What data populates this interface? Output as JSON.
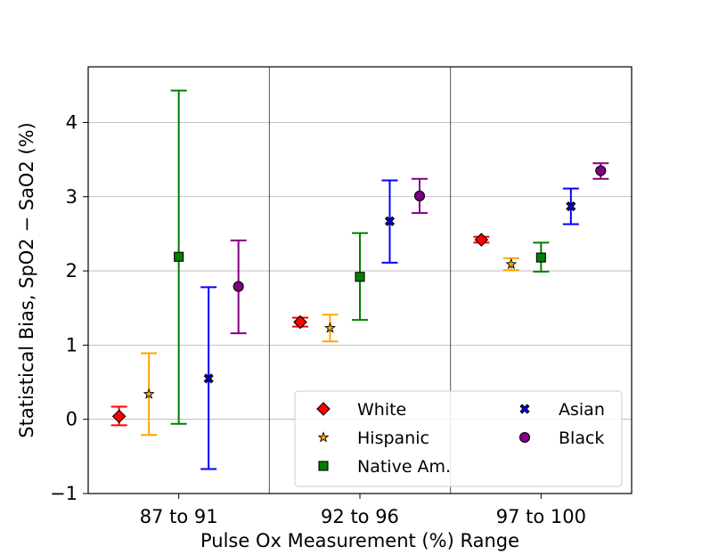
{
  "chart_data": {
    "type": "scatter",
    "subtype": "errorbar",
    "title": "",
    "xlabel": "Pulse Ox Measurement (%) Range",
    "ylabel": "Statistical Bias, SpO2 − SaO2 (%)",
    "categories": [
      "87 to 91",
      "92 to 96",
      "97 to 100"
    ],
    "ylim": [
      -1,
      4.75
    ],
    "yticks": [
      -1,
      0,
      1,
      2,
      3,
      4
    ],
    "ytick_labels": [
      "−1",
      "0",
      "1",
      "2",
      "3",
      "4"
    ],
    "grid": "horizontal",
    "legend_position": "lower-right",
    "series": [
      {
        "name": "White",
        "color": "#ff0000",
        "marker": "diamond",
        "values": [
          0.04,
          1.31,
          2.42
        ],
        "lower": [
          -0.08,
          1.25,
          2.38
        ],
        "upper": [
          0.17,
          1.37,
          2.46
        ]
      },
      {
        "name": "Hispanic",
        "color": "#ffa500",
        "marker": "star",
        "values": [
          0.34,
          1.23,
          2.09
        ],
        "lower": [
          -0.21,
          1.05,
          2.01
        ],
        "upper": [
          0.89,
          1.41,
          2.17
        ]
      },
      {
        "name": "Native Am.",
        "color": "#008000",
        "marker": "square",
        "values": [
          2.19,
          1.92,
          2.18
        ],
        "lower": [
          -0.06,
          1.34,
          1.99
        ],
        "upper": [
          4.43,
          2.51,
          2.38
        ]
      },
      {
        "name": "Asian",
        "color": "#0000ff",
        "marker": "x",
        "values": [
          0.55,
          2.67,
          2.87
        ],
        "lower": [
          -0.67,
          2.11,
          2.63
        ],
        "upper": [
          1.78,
          3.22,
          3.11
        ]
      },
      {
        "name": "Black",
        "color": "#800080",
        "marker": "circle",
        "values": [
          1.79,
          3.01,
          3.35
        ],
        "lower": [
          1.16,
          2.78,
          3.24
        ],
        "upper": [
          2.41,
          3.24,
          3.45
        ]
      }
    ]
  }
}
